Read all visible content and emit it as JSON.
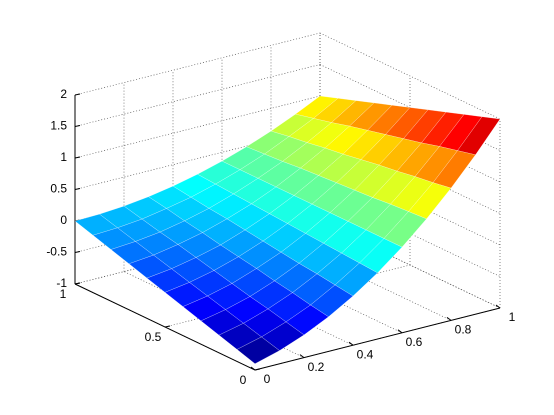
{
  "chart_data": {
    "type": "surface",
    "x": [
      0,
      0.1,
      0.2,
      0.3,
      0.4,
      0.5,
      0.6,
      0.7,
      0.8,
      0.9,
      1
    ],
    "y": [
      0,
      0.1,
      0.2,
      0.3,
      0.4,
      0.5,
      0.6,
      0.7,
      0.8,
      0.9,
      1
    ],
    "z": [
      [
        -0.9,
        -0.79,
        -0.64,
        -0.45,
        -0.22,
        0.05,
        0.36,
        0.71,
        1.1,
        1.53,
        2
      ],
      [
        -0.81,
        -0.71,
        -0.57,
        -0.4,
        -0.18,
        0.07,
        0.36,
        0.69,
        1.05,
        1.46,
        1.9
      ],
      [
        -0.72,
        -0.63,
        -0.5,
        -0.34,
        -0.14,
        0.09,
        0.36,
        0.67,
        1.01,
        1.39,
        1.8
      ],
      [
        -0.63,
        -0.55,
        -0.44,
        -0.29,
        -0.11,
        0.11,
        0.36,
        0.64,
        0.96,
        1.31,
        1.7
      ],
      [
        -0.54,
        -0.47,
        -0.37,
        -0.23,
        -0.07,
        0.13,
        0.36,
        0.62,
        0.92,
        1.24,
        1.6
      ],
      [
        -0.45,
        -0.39,
        -0.3,
        -0.18,
        -0.03,
        0.15,
        0.36,
        0.6,
        0.87,
        1.17,
        1.5
      ],
      [
        -0.36,
        -0.31,
        -0.23,
        -0.13,
        0.01,
        0.17,
        0.36,
        0.58,
        0.82,
        1.1,
        1.4
      ],
      [
        -0.27,
        -0.23,
        -0.16,
        -0.07,
        0.05,
        0.19,
        0.36,
        0.56,
        0.78,
        1.03,
        1.3
      ],
      [
        -0.18,
        -0.15,
        -0.1,
        -0.02,
        0.08,
        0.21,
        0.36,
        0.53,
        0.73,
        0.95,
        1.2
      ],
      [
        -0.09,
        -0.07,
        -0.03,
        0.04,
        0.12,
        0.23,
        0.36,
        0.51,
        0.69,
        0.88,
        1.1
      ],
      [
        0,
        0.01,
        0.04,
        0.09,
        0.16,
        0.25,
        0.36,
        0.49,
        0.64,
        0.81,
        1
      ]
    ],
    "xlim": [
      0,
      1
    ],
    "ylim": [
      0,
      1
    ],
    "zlim": [
      -1,
      2
    ],
    "xticks": [
      0,
      0.2,
      0.4,
      0.6,
      0.8,
      1
    ],
    "yticks": [
      0,
      0.5,
      1
    ],
    "zticks": [
      -1,
      -0.5,
      0,
      0.5,
      1,
      1.5,
      2
    ],
    "grid": true,
    "colormap": "jet"
  }
}
